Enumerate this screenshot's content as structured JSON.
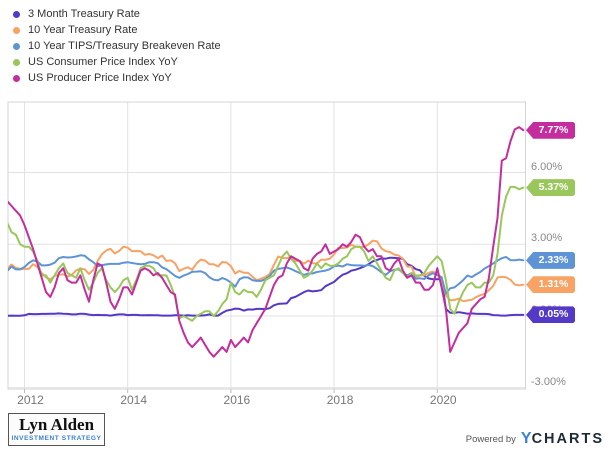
{
  "legend": {
    "items": [
      {
        "label": "3 Month Treasury Rate",
        "color": "#5438c8"
      },
      {
        "label": "10 Year Treasury Rate",
        "color": "#f8a263"
      },
      {
        "label": "10 Year TIPS/Treasury Breakeven Rate",
        "color": "#5e93d6"
      },
      {
        "label": "US Consumer Price Index YoY",
        "color": "#99c75c"
      },
      {
        "label": "US Producer Price Index YoY",
        "color": "#c42d9d"
      }
    ]
  },
  "colors": {
    "grid": "#e2e2e2",
    "plot_border": "#d5d5d5",
    "axis_text": "#888888"
  },
  "footer": {
    "logo_name": "Lyn Alden",
    "logo_tagline": "INVESTMENT STRATEGY",
    "powered_by": "Powered by",
    "brand_y": "Y",
    "brand_rest": "CHARTS"
  },
  "chart_data": {
    "type": "line",
    "title": "",
    "xlabel": "",
    "ylabel": "",
    "grid": true,
    "legend_position": "top-left",
    "x_start_year": 2011.6667,
    "x_step_years": 0.0833333,
    "xlim": [
      2011.68,
      2021.71
    ],
    "ylim": [
      -3.05,
      8.95
    ],
    "x_ticks": [
      {
        "label": "2012",
        "year": 2012
      },
      {
        "label": "2014",
        "year": 2014
      },
      {
        "label": "2016",
        "year": 2016
      },
      {
        "label": "2018",
        "year": 2018
      },
      {
        "label": "2020",
        "year": 2020
      }
    ],
    "y_ticks": [
      {
        "label": "6.00%",
        "value": 6
      },
      {
        "label": "3.00%",
        "value": 3
      },
      {
        "label": "0.00%",
        "value": 0
      },
      {
        "label": "-3.00%",
        "value": -3
      }
    ],
    "series": [
      {
        "name": "3 Month Treasury Rate",
        "color": "#5438c8",
        "end_label": "0.05%",
        "values": [
          0.01,
          0.02,
          0.01,
          0.01,
          0.03,
          0.09,
          0.08,
          0.08,
          0.09,
          0.09,
          0.1,
          0.1,
          0.11,
          0.1,
          0.09,
          0.07,
          0.07,
          0.1,
          0.09,
          0.06,
          0.04,
          0.05,
          0.04,
          0.04,
          0.02,
          0.05,
          0.07,
          0.07,
          0.04,
          0.05,
          0.05,
          0.03,
          0.03,
          0.04,
          0.03,
          0.03,
          0.02,
          0.02,
          0.02,
          0.03,
          0.03,
          0.02,
          0.03,
          0.02,
          0.02,
          0.02,
          0.03,
          0.07,
          0.02,
          0.02,
          0.13,
          0.23,
          0.26,
          0.31,
          0.3,
          0.23,
          0.28,
          0.27,
          0.3,
          0.3,
          0.29,
          0.33,
          0.45,
          0.51,
          0.52,
          0.53,
          0.75,
          0.8,
          0.9,
          1.0,
          1.07,
          1.03,
          1.05,
          1.08,
          1.25,
          1.34,
          1.43,
          1.59,
          1.73,
          1.79,
          1.9,
          1.94,
          2.0,
          2.07,
          2.17,
          2.29,
          2.35,
          2.41,
          2.4,
          2.44,
          2.43,
          2.42,
          2.39,
          2.17,
          2.1,
          1.96,
          1.91,
          1.68,
          1.57,
          1.54,
          1.54,
          1.55,
          0.3,
          0.14,
          0.13,
          0.16,
          0.13,
          0.1,
          0.11,
          0.1,
          0.09,
          0.09,
          0.08,
          0.04,
          0.03,
          0.02,
          0.02,
          0.04,
          0.05,
          0.05,
          0.05
        ]
      },
      {
        "name": "10 Year Treasury Rate",
        "color": "#f8a263",
        "end_label": "1.31%",
        "values": [
          1.98,
          2.15,
          2.01,
          1.98,
          1.97,
          1.97,
          2.17,
          2.05,
          1.8,
          1.62,
          1.53,
          1.68,
          1.72,
          1.75,
          1.65,
          1.72,
          1.91,
          1.98,
          1.96,
          1.76,
          1.93,
          2.3,
          2.58,
          2.74,
          2.81,
          2.62,
          2.72,
          2.9,
          2.86,
          2.71,
          2.72,
          2.71,
          2.56,
          2.6,
          2.54,
          2.42,
          2.53,
          2.3,
          2.33,
          2.21,
          1.88,
          1.98,
          2.04,
          1.94,
          2.2,
          2.36,
          2.32,
          2.17,
          2.17,
          2.07,
          2.26,
          2.24,
          2.09,
          1.78,
          1.89,
          1.81,
          1.81,
          1.64,
          1.5,
          1.56,
          1.63,
          1.76,
          2.14,
          2.49,
          2.43,
          2.42,
          2.48,
          2.3,
          2.3,
          2.19,
          2.32,
          2.21,
          2.2,
          2.36,
          2.35,
          2.4,
          2.58,
          2.86,
          2.84,
          2.87,
          2.98,
          2.91,
          2.89,
          2.89,
          3.0,
          3.15,
          3.12,
          2.83,
          2.71,
          2.68,
          2.57,
          2.53,
          2.4,
          2.07,
          2.06,
          1.63,
          1.7,
          1.71,
          1.81,
          1.86,
          1.76,
          1.5,
          0.87,
          0.66,
          0.67,
          0.73,
          0.62,
          0.65,
          0.68,
          0.79,
          0.87,
          0.93,
          1.08,
          1.26,
          1.61,
          1.64,
          1.62,
          1.52,
          1.32,
          1.28,
          1.31
        ]
      },
      {
        "name": "10 Year TIPS/Treasury Breakeven Rate",
        "color": "#5e93d6",
        "end_label": "2.33%",
        "values": [
          1.89,
          2.07,
          1.95,
          1.95,
          2.05,
          2.22,
          2.33,
          2.28,
          2.12,
          2.12,
          2.15,
          2.23,
          2.42,
          2.47,
          2.45,
          2.46,
          2.49,
          2.54,
          2.52,
          2.37,
          2.25,
          2.08,
          2.13,
          2.16,
          2.18,
          2.18,
          2.18,
          2.23,
          2.25,
          2.22,
          2.19,
          2.17,
          2.18,
          2.25,
          2.25,
          2.21,
          2.04,
          1.96,
          1.82,
          1.68,
          1.6,
          1.69,
          1.76,
          1.85,
          1.86,
          1.87,
          1.8,
          1.62,
          1.52,
          1.49,
          1.59,
          1.52,
          1.4,
          1.23,
          1.54,
          1.62,
          1.61,
          1.5,
          1.47,
          1.47,
          1.54,
          1.67,
          1.9,
          1.97,
          2.0,
          2.03,
          1.97,
          1.88,
          1.8,
          1.72,
          1.78,
          1.78,
          1.84,
          1.87,
          1.9,
          1.96,
          2.08,
          2.11,
          2.07,
          2.17,
          2.13,
          2.12,
          2.12,
          2.1,
          2.14,
          2.09,
          1.97,
          1.83,
          1.72,
          1.87,
          1.94,
          1.95,
          1.8,
          1.7,
          1.79,
          1.56,
          1.58,
          1.55,
          1.71,
          1.79,
          1.71,
          1.63,
          0.94,
          1.16,
          1.2,
          1.34,
          1.5,
          1.69,
          1.63,
          1.74,
          1.84,
          1.99,
          2.09,
          2.2,
          2.32,
          2.42,
          2.47,
          2.34,
          2.33,
          2.36,
          2.33
        ]
      },
      {
        "name": "US Consumer Price Index YoY",
        "color": "#99c75c",
        "end_label": "5.37%",
        "values": [
          3.9,
          3.5,
          3.4,
          3.0,
          2.9,
          2.9,
          2.7,
          2.3,
          1.7,
          1.7,
          1.4,
          1.7,
          2.0,
          2.2,
          1.8,
          1.7,
          1.6,
          2.0,
          1.5,
          1.1,
          1.4,
          1.8,
          2.0,
          1.5,
          1.2,
          1.0,
          1.2,
          1.5,
          1.6,
          1.1,
          1.5,
          2.0,
          2.1,
          2.1,
          2.0,
          1.7,
          1.7,
          1.7,
          1.3,
          0.8,
          -0.1,
          0.0,
          -0.1,
          -0.2,
          0.0,
          0.1,
          0.2,
          0.2,
          0.0,
          0.2,
          0.5,
          0.7,
          1.4,
          1.0,
          0.9,
          1.1,
          1.0,
          1.0,
          0.8,
          1.1,
          1.5,
          1.6,
          1.7,
          2.1,
          2.5,
          2.7,
          2.4,
          2.2,
          1.9,
          1.6,
          1.7,
          1.9,
          2.2,
          2.0,
          2.2,
          2.1,
          2.1,
          2.2,
          2.4,
          2.5,
          2.8,
          2.9,
          2.9,
          2.7,
          2.3,
          2.5,
          2.2,
          1.9,
          1.6,
          1.5,
          1.9,
          2.0,
          1.8,
          1.6,
          1.8,
          1.7,
          1.7,
          1.8,
          2.1,
          2.3,
          2.5,
          2.3,
          1.5,
          0.3,
          0.1,
          0.6,
          1.0,
          1.3,
          1.4,
          1.2,
          1.2,
          1.4,
          1.4,
          1.7,
          2.6,
          4.2,
          5.0,
          5.4,
          5.4,
          5.3,
          5.37
        ]
      },
      {
        "name": "US Producer Price Index YoY",
        "color": "#c42d9d",
        "end_label": "7.77%",
        "values": [
          4.8,
          4.6,
          4.4,
          4.2,
          3.8,
          3.3,
          2.8,
          2.2,
          1.6,
          1.0,
          0.8,
          1.2,
          1.8,
          2.0,
          1.5,
          1.4,
          1.4,
          1.7,
          1.1,
          0.6,
          1.5,
          2.2,
          2.1,
          1.4,
          0.6,
          0.3,
          0.7,
          1.2,
          1.2,
          0.9,
          1.4,
          1.9,
          2.0,
          1.9,
          1.7,
          1.8,
          1.6,
          1.3,
          1.0,
          0.9,
          -0.2,
          -0.7,
          -1.1,
          -1.3,
          -1.1,
          -0.9,
          -1.2,
          -1.5,
          -1.7,
          -1.5,
          -1.3,
          -1.5,
          -1.0,
          -1.3,
          -1.1,
          -0.9,
          -1.1,
          -0.6,
          -0.3,
          0.0,
          0.3,
          0.8,
          1.3,
          1.6,
          1.7,
          2.2,
          2.5,
          2.4,
          2.3,
          2.0,
          1.9,
          2.4,
          2.6,
          2.7,
          3.0,
          2.6,
          2.7,
          2.8,
          3.0,
          2.9,
          3.1,
          3.4,
          3.3,
          2.9,
          2.7,
          2.8,
          2.5,
          2.5,
          2.0,
          1.9,
          2.2,
          2.4,
          1.9,
          1.6,
          1.7,
          1.4,
          1.4,
          1.1,
          1.1,
          1.3,
          2.0,
          1.2,
          0.3,
          -1.5,
          -1.1,
          -0.7,
          -0.5,
          -0.3,
          0.3,
          0.5,
          0.7,
          0.8,
          1.6,
          2.9,
          4.1,
          6.5,
          6.6,
          7.3,
          7.8,
          7.9,
          7.77
        ]
      }
    ]
  }
}
